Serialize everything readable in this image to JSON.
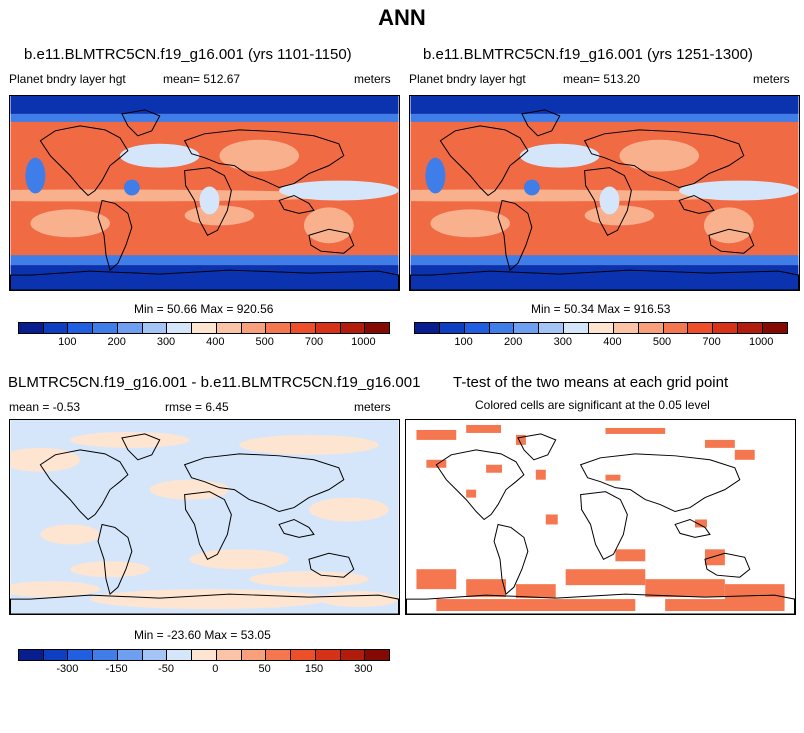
{
  "title": "ANN",
  "panels": {
    "p1": {
      "title": "b.e11.BLMTRC5CN.f19_g16.001 (yrs 1101-1150)",
      "var": "Planet bndry layer hgt",
      "mean": "mean= 512.67",
      "units": "meters",
      "minmax": "Min =  50.66 Max = 920.56"
    },
    "p2": {
      "title": "b.e11.BLMTRC5CN.f19_g16.001 (yrs 1251-1300)",
      "var": "Planet bndry layer hgt",
      "mean": "mean= 513.20",
      "units": "meters",
      "minmax": "Min =  50.34 Max = 916.53"
    },
    "p3": {
      "title": "BLMTRC5CN.f19_g16.001 - b.e11.BLMTRC5CN.f19_g16.001",
      "mean": "mean =  -0.53",
      "rmse": "rmse =  6.45",
      "units": "meters",
      "minmax": "Min = -23.60 Max =  53.05"
    },
    "p4": {
      "title": "T-test of the two means at each grid point",
      "subtitle": "Colored cells are significant at the 0.05 level"
    }
  },
  "colorbar_top": {
    "colors": [
      "#081d8e",
      "#0e3fc0",
      "#1f5fe0",
      "#3f7de8",
      "#6f9ff0",
      "#a3c4f5",
      "#d6e6fa",
      "#fde5d2",
      "#fbc4a6",
      "#f8a07c",
      "#f4774f",
      "#ec4f2a",
      "#d63218",
      "#b21c0c",
      "#860a04"
    ],
    "labels": [
      "100",
      "200",
      "300",
      "400",
      "500",
      "700",
      "1000"
    ]
  },
  "colorbar_diff": {
    "colors": [
      "#081d8e",
      "#0e3fc0",
      "#1f5fe0",
      "#3f7de8",
      "#6f9ff0",
      "#a3c4f5",
      "#d6e6fa",
      "#fde5d2",
      "#fbc4a6",
      "#f8a07c",
      "#f4774f",
      "#ec4f2a",
      "#d63218",
      "#b21c0c",
      "#860a04"
    ],
    "labels": [
      "-300",
      "-150",
      "-50",
      "0",
      "50",
      "150",
      "300"
    ]
  },
  "map_colors": {
    "ocean_deep": "#0b33b0",
    "ocean_mid": "#3f7de8",
    "high": "#f06a44",
    "mid": "#f9b08d",
    "low": "#d6e6fa",
    "diff_pos": "#fde5d2",
    "diff_neg": "#d6e6fa",
    "sig": "#f4774f",
    "coast": "#000000"
  }
}
